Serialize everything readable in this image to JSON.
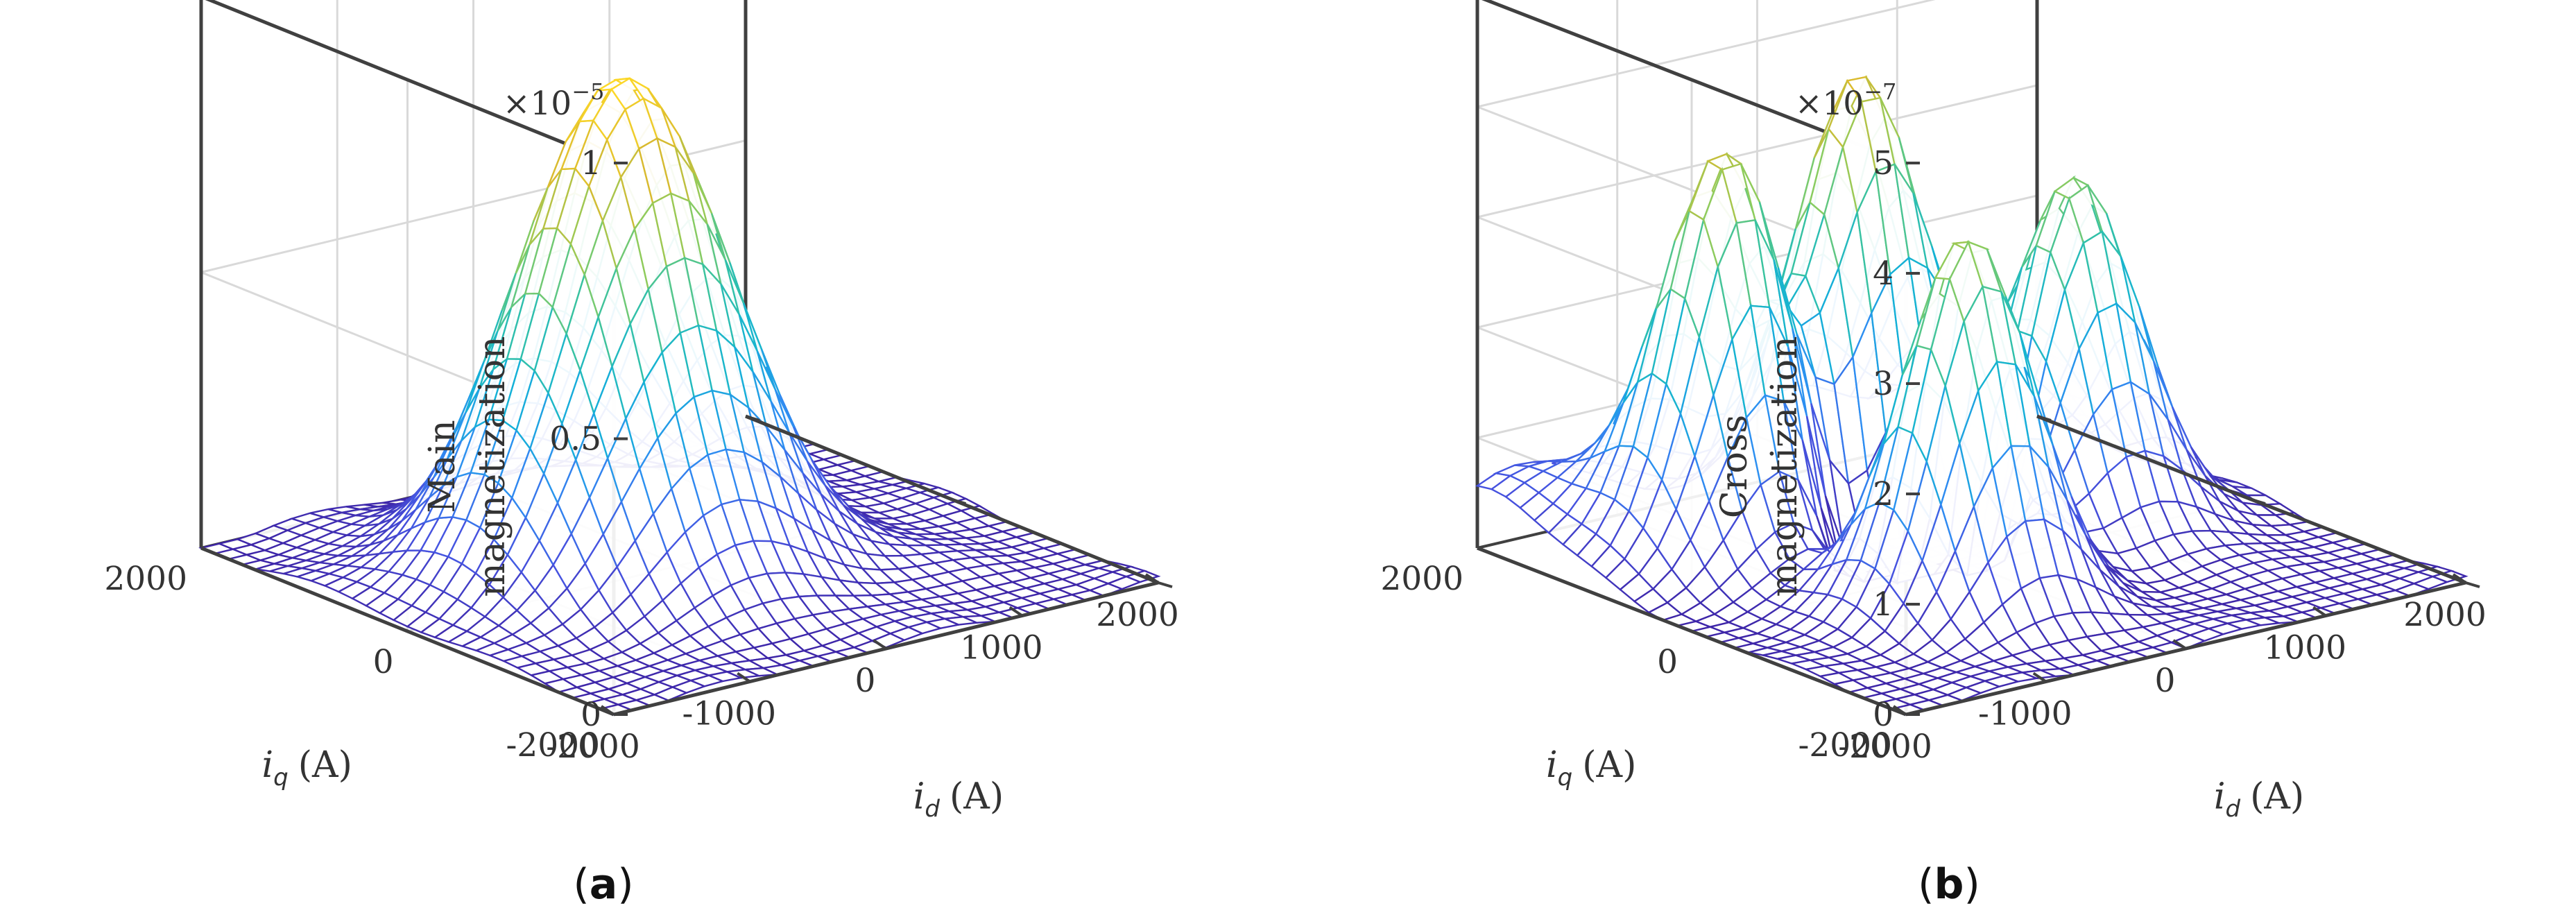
{
  "figure": {
    "caption_a": "a",
    "caption_b": "b"
  },
  "chart_data": [
    {
      "type": "surface",
      "panel": "a",
      "title": "",
      "zlabel_line1": "Main",
      "zlabel_line2": "magnetization",
      "xlabel_var": "i",
      "xlabel_sub": "d",
      "xlabel_unit": "(A)",
      "ylabel_var": "i",
      "ylabel_sub": "q",
      "ylabel_unit": "(A)",
      "exponent_base": "×10",
      "exponent_power": "−5",
      "xlim": [
        -2000,
        2000
      ],
      "ylim": [
        -2000,
        2000
      ],
      "zlim": [
        0,
        1
      ],
      "xticks": [
        "-2000",
        "-1000",
        "0",
        "1000",
        "2000"
      ],
      "yticks": [
        "-2000",
        "0",
        "2000"
      ],
      "zticks": [
        "0",
        "0.5",
        "1"
      ],
      "grid_n": 31,
      "peaks": [
        {
          "x": -300,
          "y": 150,
          "amp": 0.9,
          "sigma": 620
        }
      ],
      "colormap": [
        "#3e26a8",
        "#4653e0",
        "#2e8ef2",
        "#13b2d6",
        "#35c2a4",
        "#8dcc5d",
        "#d9ba2f",
        "#fdd827",
        "#f9fb0e"
      ]
    },
    {
      "type": "surface",
      "panel": "b",
      "title": "",
      "zlabel_line1": "Cross",
      "zlabel_line2": "magnetization",
      "xlabel_var": "i",
      "xlabel_sub": "d",
      "xlabel_unit": "(A)",
      "ylabel_var": "i",
      "ylabel_sub": "q",
      "ylabel_unit": "(A)",
      "exponent_base": "×10",
      "exponent_power": "−7",
      "xlim": [
        -2000,
        2000
      ],
      "ylim": [
        -2000,
        2000
      ],
      "zlim": [
        0,
        5
      ],
      "xticks": [
        "-2000",
        "-1000",
        "0",
        "1000",
        "2000"
      ],
      "yticks": [
        "-2000",
        "0",
        "2000"
      ],
      "zticks": [
        "0",
        "1",
        "2",
        "3",
        "4",
        "5"
      ],
      "grid_n": 31,
      "peaks": [
        {
          "x": -1000,
          "y": 1000,
          "amp": 3.7,
          "sigma": 380
        },
        {
          "x": 200,
          "y": 1300,
          "amp": 3.9,
          "sigma": 380
        },
        {
          "x": -500,
          "y": -600,
          "amp": 3.4,
          "sigma": 380
        },
        {
          "x": 900,
          "y": 200,
          "amp": 3.2,
          "sigma": 380
        },
        {
          "x": -200,
          "y": 300,
          "amp": -2.6,
          "sigma": 330
        },
        {
          "x": 1500,
          "y": 1800,
          "amp": 0.9,
          "sigma": 500
        },
        {
          "x": -1800,
          "y": 1900,
          "amp": 0.7,
          "sigma": 450
        }
      ],
      "colormap": [
        "#3e26a8",
        "#4653e0",
        "#2e8ef2",
        "#13b2d6",
        "#35c2a4",
        "#8dcc5d",
        "#d9ba2f",
        "#fdd827",
        "#f9fb0e"
      ]
    }
  ]
}
